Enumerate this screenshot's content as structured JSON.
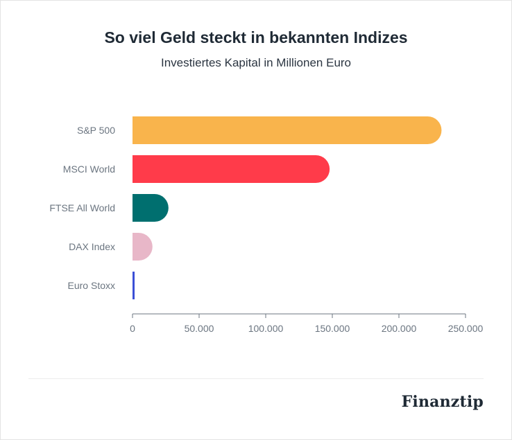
{
  "header": {
    "title": "So viel Geld steckt in bekannten Indizes",
    "subtitle": "Investiertes Kapital in Millionen Euro"
  },
  "brand": {
    "name": "Finanztip"
  },
  "chart_data": {
    "type": "bar",
    "orientation": "horizontal",
    "title": "So viel Geld steckt in bekannten Indizes",
    "subtitle": "Investiertes Kapital in Millionen Euro",
    "categories": [
      "S&P 500",
      "MSCI World",
      "FTSE All World",
      "DAX Index",
      "Euro Stoxx"
    ],
    "values": [
      232000,
      148000,
      27000,
      15000,
      1500
    ],
    "colors": [
      "#f9b44c",
      "#ff3b4a",
      "#006f6f",
      "#e8b7c8",
      "#3b4fd6"
    ],
    "xlim": [
      0,
      250000
    ],
    "xticks": [
      "0",
      "50.000",
      "100.000",
      "150.000",
      "200.000",
      "250.000"
    ],
    "xtick_values": [
      0,
      50000,
      100000,
      150000,
      200000,
      250000
    ],
    "grid": false,
    "legend": "none"
  }
}
